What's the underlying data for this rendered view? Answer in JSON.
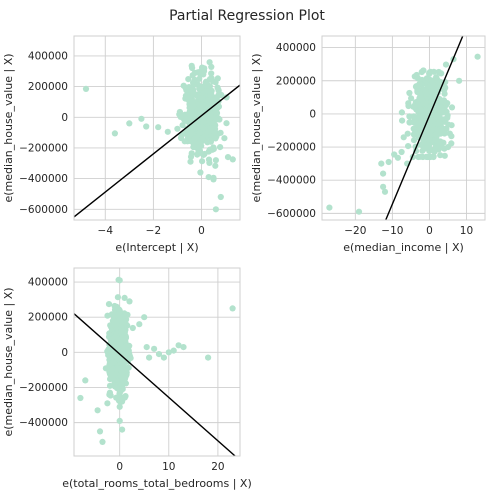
{
  "figure": {
    "title": "Partial Regression Plot"
  },
  "colors": {
    "points": "#b3e2cd",
    "fit_line": "#000000",
    "grid": "#cfcfcf"
  },
  "chart_data": [
    {
      "type": "scatter",
      "xlabel": "e(Intercept | X)",
      "ylabel": "e(median_house_value | X)",
      "xlim": [
        -5.3,
        1.6
      ],
      "ylim": [
        -670000,
        530000
      ],
      "xticks": [
        -4,
        -2,
        0
      ],
      "xtick_labels": [
        "−4",
        "−2",
        "0"
      ],
      "yticks": [
        -600000,
        -400000,
        -200000,
        0,
        200000,
        400000
      ],
      "ytick_labels": [
        "−600000",
        "−400000",
        "−200000",
        "0",
        "200000",
        "400000"
      ],
      "grid": true,
      "fit_line": {
        "x": [
          -5.3,
          1.6
        ],
        "y": [
          -650000,
          210000
        ]
      },
      "outliers": {
        "x": [
          -4.8,
          -3.6,
          -3.0,
          -2.5,
          -2.3,
          -1.8,
          -1.4,
          -1.0,
          -0.6,
          -0.3,
          0.3,
          0.5,
          0.5,
          0.6,
          0.6,
          0.8,
          1.1,
          1.3
        ],
        "y": [
          185000,
          -105000,
          -40000,
          -10000,
          -60000,
          -65000,
          -95000,
          -75000,
          -75000,
          -170000,
          -390000,
          -405000,
          -395000,
          -600000,
          -280000,
          -520000,
          -260000,
          -275000
        ]
      },
      "cloud": {
        "xc": 0.0,
        "xs": 0.35,
        "yc": 10000,
        "ys": 120000,
        "ymin": -360000,
        "ymax": 480000,
        "n": 520
      }
    },
    {
      "type": "scatter",
      "xlabel": "e(median_income | X)",
      "ylabel": "e(median_house_value | X)",
      "xlim": [
        -29,
        15
      ],
      "ylim": [
        -640000,
        470000
      ],
      "xticks": [
        -20,
        -10,
        0,
        10
      ],
      "xtick_labels": [
        "−20",
        "−10",
        "0",
        "10"
      ],
      "yticks": [
        -600000,
        -400000,
        -200000,
        0,
        200000,
        400000
      ],
      "ytick_labels": [
        "−600000",
        "−400000",
        "−200000",
        "0",
        "200000",
        "400000"
      ],
      "grid": true,
      "fit_line": {
        "x": [
          -11.8,
          9.0
        ],
        "y": [
          -640000,
          470000
        ]
      },
      "outliers": {
        "x": [
          -27,
          -19,
          -13,
          -12.5,
          -12.5,
          -12,
          -11,
          -9.5,
          -8.5,
          -7.5,
          -6,
          3,
          4,
          5,
          6.5,
          8,
          13
        ],
        "y": [
          -565000,
          -590000,
          -300000,
          -360000,
          -440000,
          -470000,
          -290000,
          -245000,
          -265000,
          -230000,
          -300000,
          -190000,
          -210000,
          -200000,
          330000,
          200000,
          345000
        ]
      },
      "cloud": {
        "xc": 0.0,
        "xs": 2.2,
        "yc": 0,
        "ys": 120000,
        "ymin": -260000,
        "ymax": 420000,
        "n": 520,
        "slope": 45000
      }
    },
    {
      "type": "scatter",
      "xlabel": "e(total_rooms_total_bedrooms | X)",
      "ylabel": "e(median_house_value | X)",
      "xlim": [
        -9.3,
        24.5
      ],
      "ylim": [
        -590000,
        480000
      ],
      "xticks": [
        0,
        10,
        20
      ],
      "xtick_labels": [
        "0",
        "10",
        "20"
      ],
      "yticks": [
        -400000,
        -200000,
        0,
        200000,
        400000
      ],
      "ytick_labels": [
        "−400000",
        "−200000",
        "0",
        "200000",
        "400000"
      ],
      "grid": true,
      "fit_line": {
        "x": [
          -9.3,
          23.5
        ],
        "y": [
          220000,
          -590000
        ]
      },
      "outliers": {
        "x": [
          -8,
          -7,
          -4.5,
          -4,
          -3.5,
          -2.5,
          -2,
          0,
          0,
          0.5,
          1,
          2,
          4,
          5,
          5.5,
          6,
          7,
          8,
          9,
          10,
          11,
          12,
          13,
          18,
          23
        ],
        "y": [
          -260000,
          -160000,
          -330000,
          -450000,
          -510000,
          -290000,
          -230000,
          -390000,
          -310000,
          -440000,
          310000,
          290000,
          160000,
          200000,
          30000,
          -30000,
          20000,
          -10000,
          -30000,
          0,
          10000,
          40000,
          30000,
          -30000,
          250000
        ]
      },
      "cloud": {
        "xc": -0.3,
        "xs": 0.9,
        "yc": 0,
        "ys": 115000,
        "ymin": -280000,
        "ymax": 420000,
        "n": 520
      }
    }
  ]
}
